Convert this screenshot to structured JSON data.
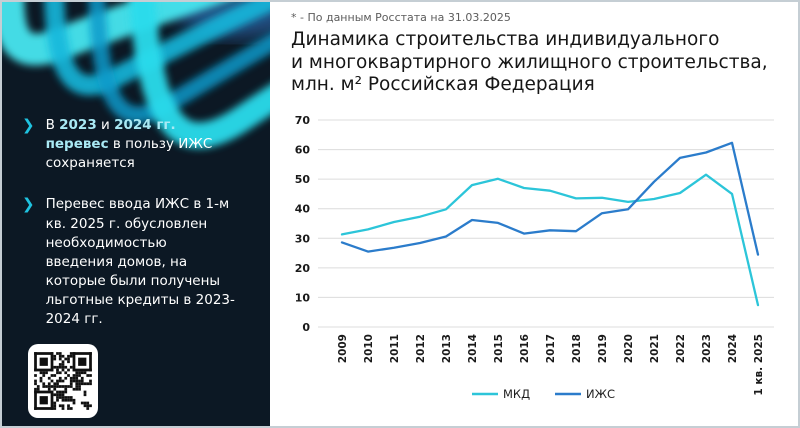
{
  "colors": {
    "sidebar_bg": "#0c1824",
    "accent_text": "#a9e9f4",
    "chevron": "#1fc3e0",
    "mkd_line": "#2cc5d9",
    "izhs_line": "#2b7ccb",
    "grid": "#dcdcdc"
  },
  "sidebar": {
    "bullets": [
      {
        "segments": [
          {
            "text": "В "
          },
          {
            "text": "2023",
            "accent": true
          },
          {
            "text": " и "
          },
          {
            "text": "2024 гг.",
            "accent": true
          },
          {
            "text": " "
          },
          {
            "text": "перевес",
            "accent": true
          },
          {
            "text": " в пользу ИЖС сохраняется"
          }
        ]
      },
      {
        "segments": [
          {
            "text": "Перевес ввода ИЖС в 1-м кв. 2025 г. обусловлен необходимостью введения домов, на которые были получены льготные кредиты в 2023-2024 гг."
          }
        ]
      }
    ],
    "qr_icon": "qr-code"
  },
  "main": {
    "footnote": "* - По данным Росстата на 31.03.2025",
    "title_lines": [
      "Динамика строительства индивидуального",
      "и многоквартирного жилищного строительства,",
      "млн. м² Российская Федерация"
    ]
  },
  "chart_data": {
    "type": "line",
    "title": "Динамика строительства индивидуального и многоквартирного жилищного строительства, млн. м² Российская Федерация",
    "xlabel": "",
    "ylabel": "",
    "x": [
      "2009",
      "2010",
      "2011",
      "2012",
      "2013",
      "2014",
      "2015",
      "2016",
      "2017",
      "2018",
      "2019",
      "2020",
      "2021",
      "2022",
      "2023",
      "2024",
      "1 кв. 2025"
    ],
    "series": [
      {
        "name": "МКД",
        "color": "#2cc5d9",
        "values": [
          31.3,
          33.0,
          35.5,
          37.3,
          39.8,
          48.0,
          50.1,
          47.0,
          46.1,
          43.5,
          43.7,
          42.3,
          43.3,
          45.3,
          51.5,
          45.0,
          7.4
        ]
      },
      {
        "name": "ИЖС",
        "color": "#2b7ccb",
        "values": [
          28.6,
          25.5,
          26.8,
          28.4,
          30.6,
          36.2,
          35.2,
          31.6,
          32.7,
          32.4,
          38.5,
          39.8,
          49.1,
          57.2,
          59.0,
          62.3,
          24.5
        ]
      }
    ],
    "ylim": [
      0,
      70
    ],
    "ytick_step": 10,
    "grid": true,
    "legend_position": "bottom"
  }
}
